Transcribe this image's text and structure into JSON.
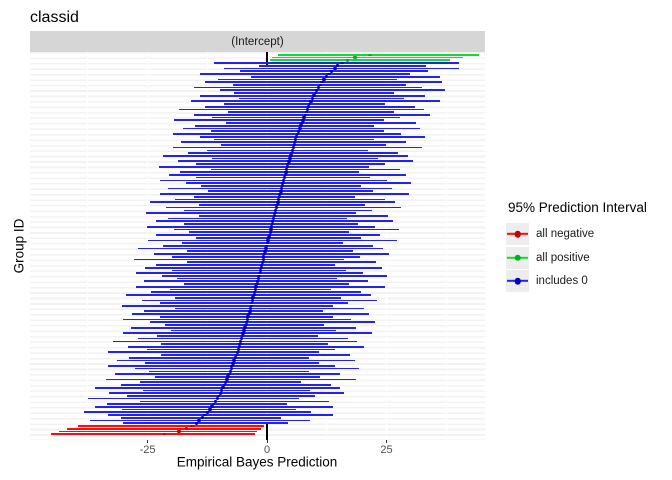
{
  "title": "classid",
  "facet": {
    "strip_label": "(Intercept)"
  },
  "axes": {
    "x_title": "Empirical Bayes Prediction",
    "y_title": "Group ID",
    "x_ticks": [
      "-25",
      "0",
      "25"
    ],
    "x_tick_values": [
      -25,
      0,
      25
    ],
    "x_minor_gridlines": [
      -37.5,
      -12.5,
      12.5,
      37.5
    ]
  },
  "legend": {
    "title": "95% Prediction Interval",
    "items": [
      {
        "key": "neg",
        "label": "all negative",
        "color": "#fb0d0d",
        "dot": "#c40000"
      },
      {
        "key": "pos",
        "label": "all positive",
        "color": "#12dd2e",
        "dot": "#00ae1e"
      },
      {
        "key": "zero",
        "label": "includes 0",
        "color": "#2424e8",
        "dot": "#0000bb"
      }
    ]
  },
  "colors": {
    "strip_bg": "#d6d6d6",
    "zero_line": "#000000",
    "neg": {
      "bar": "#fb0d0d",
      "dot": "#c40000"
    },
    "pos": {
      "bar": "#12dd2e",
      "dot": "#00ae1e"
    },
    "zero": {
      "bar": "#2424e8",
      "dot": "#0000bb"
    }
  },
  "chart_data": {
    "type": "bar",
    "subtype": "horizontal-interval-caterpillar",
    "title": "classid",
    "facet_label": "(Intercept)",
    "xlabel": "Empirical Bayes Prediction",
    "ylabel": "Group ID",
    "xlim": [
      -49.6,
      45.6
    ],
    "x_major_ticks": [
      -25,
      0,
      25
    ],
    "x_minor_gridlines": [
      -37.5,
      -12.5,
      12.5,
      37.5
    ],
    "grid": "horizontal-stripes",
    "legend_position": "right",
    "legend_title": "95% Prediction Interval",
    "category_rule": {
      "pos": "all positive (lower > 0)",
      "neg": "all negative (upper < 0)",
      "zero": "includes 0"
    },
    "n_groups": 140,
    "bars_format": [
      "lower",
      "estimate",
      "upper"
    ],
    "bars": [
      [
        2.3,
        21.5,
        44.4
      ],
      [
        1.1,
        18.4,
        40.9
      ],
      [
        0.6,
        16.8,
        38.2
      ],
      [
        -11.1,
        15.7,
        40.1
      ],
      [
        -1.6,
        14.8,
        33.2
      ],
      [
        -9.0,
        14.2,
        40.2
      ],
      [
        -5.7,
        13.5,
        33.7
      ],
      [
        -14.0,
        13.0,
        30.0
      ],
      [
        -3.4,
        12.4,
        36.2
      ],
      [
        -10.3,
        11.9,
        27.2
      ],
      [
        -12.9,
        11.5,
        36.7
      ],
      [
        -7.2,
        11.2,
        29.1
      ],
      [
        -15.2,
        10.8,
        32.4
      ],
      [
        -9.8,
        10.4,
        37.2
      ],
      [
        -6.9,
        10.1,
        26.5
      ],
      [
        -14.0,
        9.8,
        33.0
      ],
      [
        -5.8,
        9.5,
        28.7
      ],
      [
        -16.0,
        9.2,
        36.2
      ],
      [
        -9.0,
        8.9,
        24.7
      ],
      [
        -12.9,
        8.7,
        30.9
      ],
      [
        -18.4,
        8.4,
        32.8
      ],
      [
        -8.2,
        8.2,
        26.6
      ],
      [
        -15.2,
        8.0,
        34.0
      ],
      [
        -11.5,
        7.7,
        27.9
      ],
      [
        -19.5,
        7.5,
        24.5
      ],
      [
        -8.5,
        7.3,
        31.1
      ],
      [
        -15.1,
        7.1,
        22.4
      ],
      [
        -17.5,
        6.9,
        32.1
      ],
      [
        -11.8,
        6.6,
        24.5
      ],
      [
        -19.6,
        6.4,
        28.0
      ],
      [
        -14.0,
        6.2,
        33.0
      ],
      [
        -11.0,
        6.0,
        22.4
      ],
      [
        -18.0,
        5.8,
        29.0
      ],
      [
        -9.6,
        5.7,
        24.9
      ],
      [
        -19.7,
        5.5,
        32.5
      ],
      [
        -12.6,
        5.3,
        21.1
      ],
      [
        -16.5,
        5.1,
        27.3
      ],
      [
        -21.8,
        5.0,
        29.4
      ],
      [
        -11.6,
        4.8,
        23.2
      ],
      [
        -18.6,
        4.6,
        30.6
      ],
      [
        -14.8,
        4.4,
        24.6
      ],
      [
        -22.7,
        4.3,
        21.3
      ],
      [
        -11.7,
        4.1,
        27.9
      ],
      [
        -18.2,
        4.0,
        19.3
      ],
      [
        -20.6,
        3.8,
        29.0
      ],
      [
        -14.8,
        3.6,
        21.5
      ],
      [
        -22.5,
        3.5,
        25.1
      ],
      [
        -16.9,
        3.3,
        30.1
      ],
      [
        -13.8,
        3.2,
        19.6
      ],
      [
        -20.8,
        3.0,
        26.2
      ],
      [
        -12.4,
        2.9,
        22.1
      ],
      [
        -22.5,
        2.7,
        29.7
      ],
      [
        -15.3,
        2.6,
        18.4
      ],
      [
        -19.2,
        2.4,
        24.6
      ],
      [
        -24.5,
        2.3,
        26.7
      ],
      [
        -14.3,
        2.1,
        20.5
      ],
      [
        -21.2,
        2.0,
        28.0
      ],
      [
        -17.4,
        1.8,
        22.0
      ],
      [
        -25.3,
        1.7,
        18.7
      ],
      [
        -14.3,
        1.5,
        25.3
      ],
      [
        -20.8,
        1.4,
        16.7
      ],
      [
        -23.2,
        1.2,
        26.4
      ],
      [
        -17.3,
        1.1,
        19.0
      ],
      [
        -25.1,
        0.9,
        22.5
      ],
      [
        -19.4,
        0.8,
        27.6
      ],
      [
        -16.3,
        0.7,
        17.1
      ],
      [
        -23.3,
        0.5,
        23.7
      ],
      [
        -14.9,
        0.4,
        19.6
      ],
      [
        -25.0,
        0.2,
        27.2
      ],
      [
        -17.8,
        0.1,
        15.9
      ],
      [
        -21.7,
        -0.1,
        22.1
      ],
      [
        -27.0,
        -0.2,
        24.2
      ],
      [
        -16.8,
        -0.4,
        18.0
      ],
      [
        -23.7,
        -0.5,
        25.5
      ],
      [
        -19.9,
        -0.7,
        19.5
      ],
      [
        -27.8,
        -0.8,
        16.2
      ],
      [
        -16.7,
        -0.9,
        22.9
      ],
      [
        -23.3,
        -1.1,
        14.2
      ],
      [
        -25.6,
        -1.2,
        24.0
      ],
      [
        -19.8,
        -1.4,
        16.5
      ],
      [
        -27.5,
        -1.5,
        20.1
      ],
      [
        -21.9,
        -1.7,
        25.1
      ],
      [
        -18.8,
        -1.8,
        14.6
      ],
      [
        -25.8,
        -2.0,
        21.2
      ],
      [
        -17.4,
        -2.1,
        17.1
      ],
      [
        -27.5,
        -2.3,
        24.7
      ],
      [
        -20.3,
        -2.4,
        13.4
      ],
      [
        -24.2,
        -2.6,
        19.6
      ],
      [
        -29.5,
        -2.7,
        21.7
      ],
      [
        -19.3,
        -2.9,
        15.5
      ],
      [
        -26.2,
        -3.0,
        23.0
      ],
      [
        -22.4,
        -3.2,
        17.0
      ],
      [
        -30.3,
        -3.3,
        13.7
      ],
      [
        -19.3,
        -3.5,
        20.3
      ],
      [
        -25.8,
        -3.6,
        11.7
      ],
      [
        -28.2,
        -3.8,
        21.4
      ],
      [
        -22.4,
        -4.0,
        13.9
      ],
      [
        -30.1,
        -4.1,
        17.5
      ],
      [
        -24.5,
        -4.3,
        22.5
      ],
      [
        -21.4,
        -4.4,
        12.0
      ],
      [
        -28.4,
        -4.6,
        18.6
      ],
      [
        -20.1,
        -4.8,
        14.4
      ],
      [
        -30.2,
        -5.0,
        22.0
      ],
      [
        -23.0,
        -5.1,
        10.7
      ],
      [
        -26.9,
        -5.3,
        16.9
      ],
      [
        -32.3,
        -5.5,
        18.9
      ],
      [
        -22.1,
        -5.7,
        12.7
      ],
      [
        -29.0,
        -5.8,
        20.2
      ],
      [
        -25.2,
        -6.0,
        14.2
      ],
      [
        -33.2,
        -6.2,
        10.8
      ],
      [
        -22.2,
        -6.4,
        17.4
      ],
      [
        -28.8,
        -6.6,
        8.7
      ],
      [
        -31.3,
        -6.9,
        18.3
      ],
      [
        -25.5,
        -7.1,
        10.8
      ],
      [
        -33.3,
        -7.3,
        14.3
      ],
      [
        -27.7,
        -7.5,
        19.3
      ],
      [
        -24.7,
        -7.7,
        8.7
      ],
      [
        -31.8,
        -8.0,
        15.2
      ],
      [
        -23.5,
        -8.2,
        11.0
      ],
      [
        -33.6,
        -8.4,
        18.6
      ],
      [
        -26.6,
        -8.7,
        7.1
      ],
      [
        -30.5,
        -8.9,
        13.3
      ],
      [
        -36.0,
        -9.2,
        15.2
      ],
      [
        -25.9,
        -9.5,
        8.9
      ],
      [
        -33.0,
        -9.8,
        16.2
      ],
      [
        -29.3,
        -10.1,
        10.1
      ],
      [
        -37.4,
        -10.4,
        6.6
      ],
      [
        -26.6,
        -10.8,
        13.0
      ],
      [
        -33.4,
        -11.2,
        4.1
      ],
      [
        -35.9,
        -11.5,
        13.7
      ],
      [
        -30.3,
        -11.9,
        6.0
      ],
      [
        -38.4,
        -12.4,
        9.2
      ],
      [
        -33.2,
        -13.0,
        13.8
      ],
      [
        -30.5,
        -13.5,
        2.9
      ],
      [
        -37.0,
        -14.2,
        9.0
      ],
      [
        -30.1,
        -14.8,
        4.4
      ],
      [
        -39.5,
        -15.7,
        -0.6
      ],
      [
        -41.8,
        -16.8,
        -1.2
      ],
      [
        -43.6,
        -18.4,
        -2.0
      ],
      [
        -45.3,
        -21.5,
        -2.6
      ]
    ]
  }
}
